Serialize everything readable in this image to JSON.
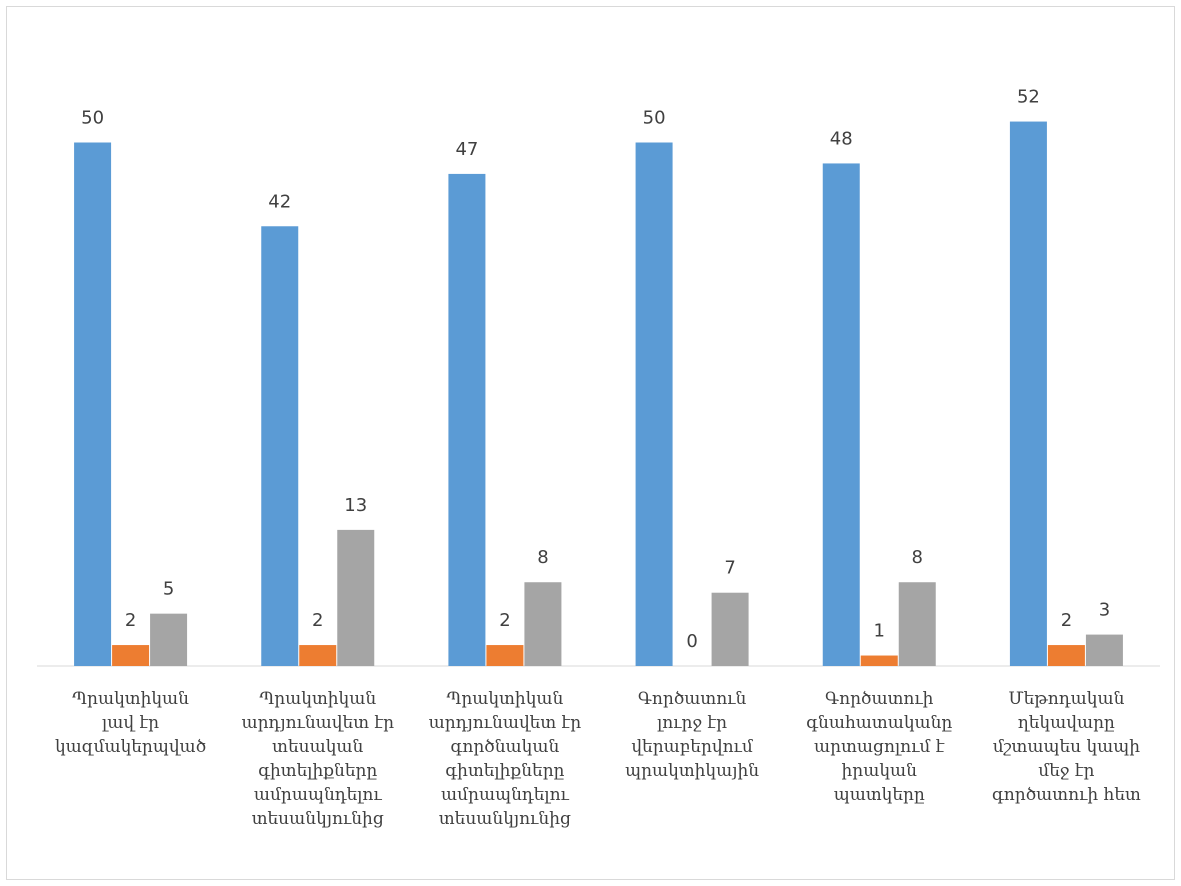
{
  "chart_data": {
    "type": "bar",
    "title": "",
    "xlabel": "",
    "ylabel": "",
    "ylim": [
      0,
      60
    ],
    "grid": false,
    "legend": "none",
    "categories": [
      "Պրակտիկան\nլավ էր\nկազմակերպված",
      "Պրակտիկան\nարդյունավետ էր\nտեսական\nգիտելիքները\nամրապնդելու\nտեսանկյունից",
      "Պրակտիկան\nարդյունավետ էր\nգործնական\nգիտելիքները\nամրապնդելու\nտեսանկյունից",
      "Գործատուն\nլուրջ էր\nվերաբերվում\nպրակտիկային",
      "Գործատուի\nգնահատականը\nարտացոլում է\nիրական\nպատկերը",
      "Մեթոդական\nղեկավարը\nմշտապես կապի\nմեջ էր\nգործատուի հետ"
    ],
    "series": [
      {
        "values": [
          50,
          42,
          47,
          50,
          48,
          52
        ],
        "color": "#5b9bd5"
      },
      {
        "values": [
          2,
          2,
          2,
          0,
          1,
          2
        ],
        "color": "#ed7d31"
      },
      {
        "values": [
          5,
          13,
          8,
          7,
          8,
          3
        ],
        "color": "#a5a5a5"
      }
    ],
    "axis_color": "#d9d9d9"
  }
}
